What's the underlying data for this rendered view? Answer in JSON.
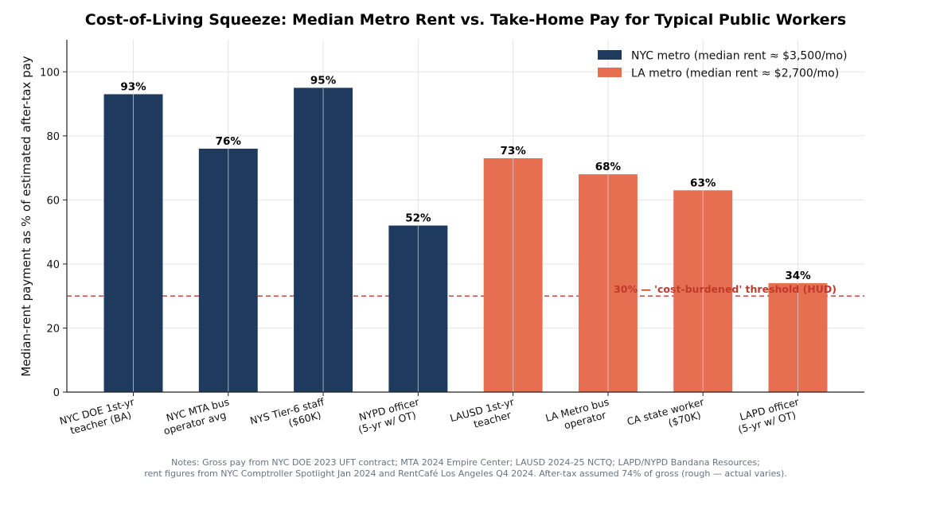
{
  "chart_data": {
    "type": "bar",
    "title": "Cost-of-Living Squeeze: Median Metro Rent vs. Take-Home Pay for Typical Public Workers",
    "ylabel": "Median-rent payment as % of estimated after-tax pay",
    "xlabel": "",
    "ylim": [
      0,
      110
    ],
    "yticks": [
      0,
      20,
      40,
      60,
      80,
      100
    ],
    "grid": true,
    "legend_position": "top-right",
    "categories": [
      [
        "NYC DOE 1st-yr",
        "teacher (BA)"
      ],
      [
        "NYC MTA bus",
        "operator avg"
      ],
      [
        "NYS Tier-6 staff",
        "($60K)"
      ],
      [
        "NYPD officer",
        "(5-yr w/ OT)"
      ],
      [
        "LAUSD 1st-yr",
        "teacher"
      ],
      [
        "LA Metro bus",
        "operator"
      ],
      [
        "CA state worker",
        "($70K)"
      ],
      [
        "LAPD officer",
        "(5-yr w/ OT)"
      ]
    ],
    "values": [
      93,
      76,
      95,
      52,
      73,
      68,
      63,
      34
    ],
    "data_labels": [
      "93%",
      "76%",
      "95%",
      "52%",
      "73%",
      "68%",
      "63%",
      "34%"
    ],
    "bar_series": [
      0,
      0,
      0,
      0,
      1,
      1,
      1,
      1
    ],
    "series": [
      {
        "name": "NYC metro (median rent ≈ $3,500/mo)",
        "color": "#1f3a5f"
      },
      {
        "name": "LA metro (median rent ≈ $2,700/mo)",
        "color": "#e76f51"
      }
    ],
    "threshold": {
      "value": 30,
      "label": "30% — 'cost-burdened' threshold (HUD)",
      "color": "#c0392b"
    },
    "notes": [
      "Notes: Gross pay from NYC DOE 2023 UFT contract; MTA 2024 Empire Center; LAUSD 2024-25 NCTQ; LAPD/NYPD Bandana Resources;",
      "rent figures from NYC Comptroller Spotlight Jan 2024 and RentCafé Los Angeles Q4 2024. After-tax assumed 74% of gross (rough — actual varies)."
    ]
  }
}
